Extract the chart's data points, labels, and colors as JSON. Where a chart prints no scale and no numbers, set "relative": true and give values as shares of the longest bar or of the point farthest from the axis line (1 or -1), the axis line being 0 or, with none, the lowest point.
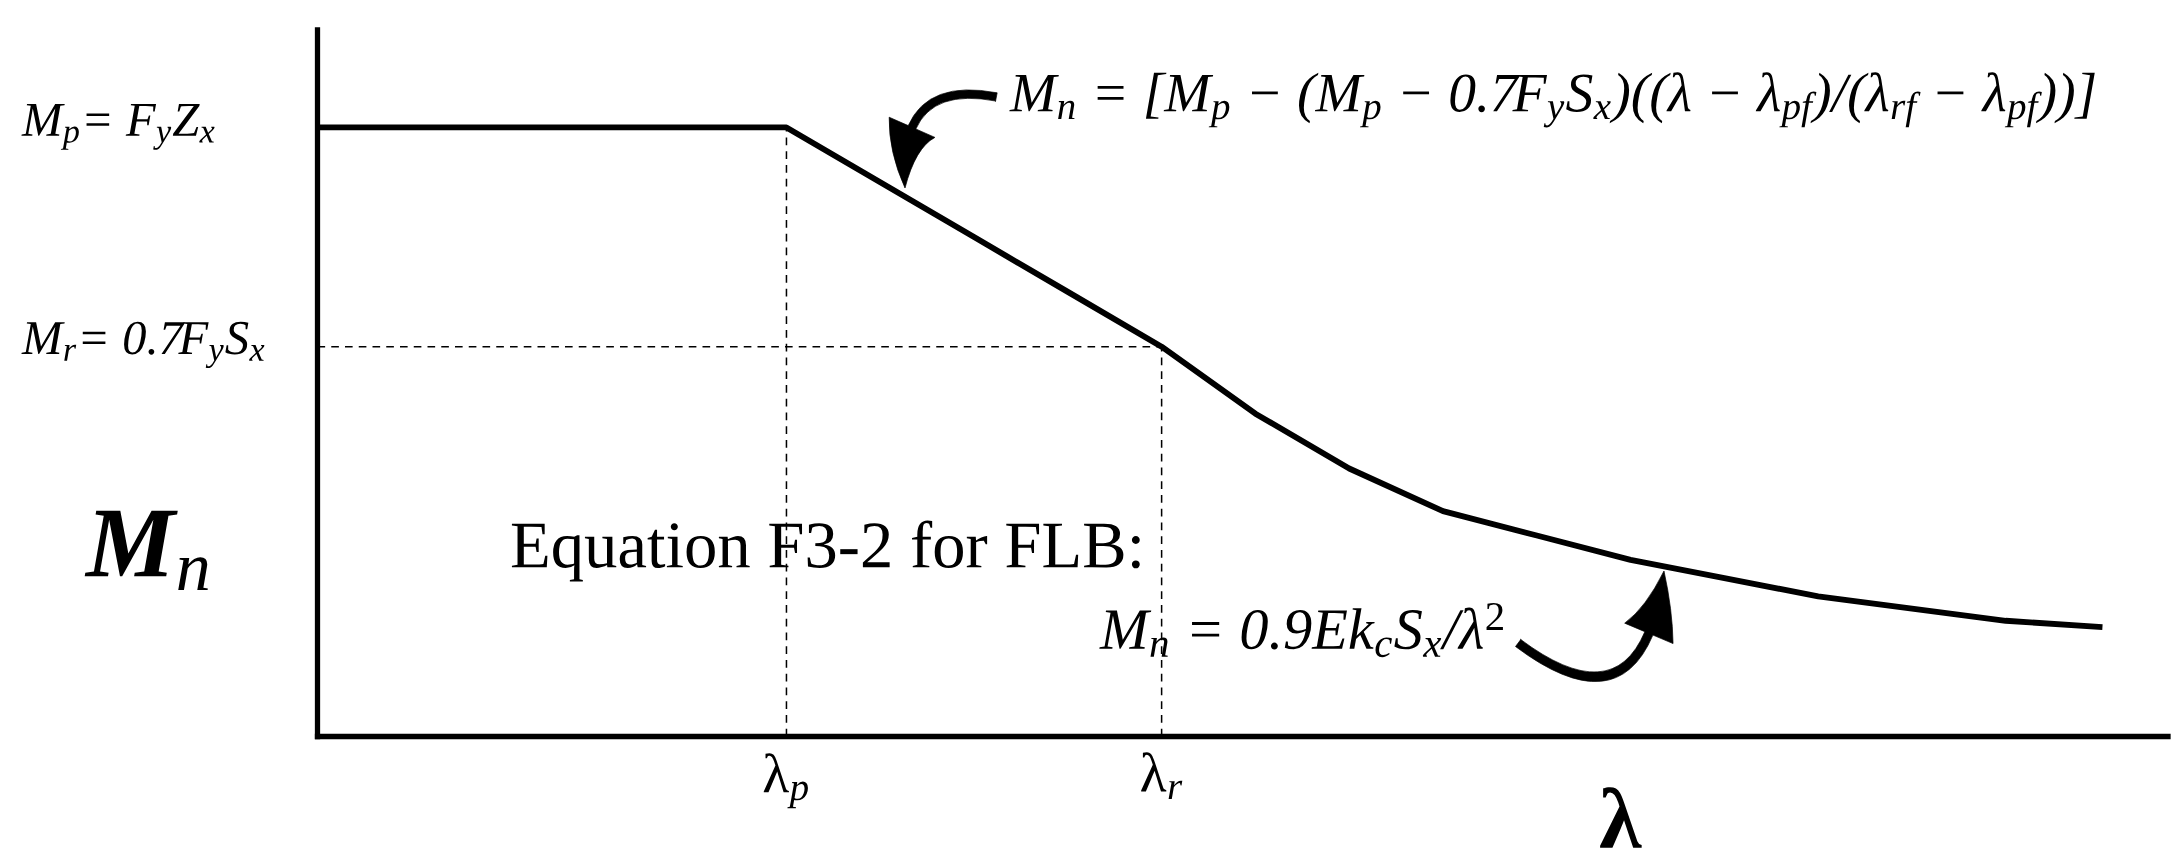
{
  "chart_data": {
    "type": "line",
    "relative": true,
    "line_style": "solid",
    "xlabel": "λ",
    "ylabel": "M$_{n}$",
    "categories": [
      null,
      null,
      null,
      null,
      null,
      "λ$_{p}$",
      null,
      null,
      null,
      "λ$_{r}$",
      null,
      null,
      null,
      null,
      null,
      null,
      null,
      null,
      null,
      null
    ],
    "series": [
      {
        "color": "#000000",
        "values": [
          1,
          1,
          1,
          1,
          1,
          1,
          0.91,
          0.82,
          0.73,
          0.64,
          0.53,
          0.44,
          0.37,
          0.33,
          0.29,
          0.26,
          0.23,
          0.21,
          0.19,
          0.18
        ]
      }
    ],
    "ref_lines": [
      {
        "axis": "x",
        "value": "λ$_{p}$",
        "color": "#000000",
        "line_style": "dashed"
      },
      {
        "axis": "x",
        "value": "λ$_{r}$",
        "color": "#000000",
        "line_style": "dashed"
      },
      {
        "axis": "y",
        "value": 0.64,
        "color": "#000000",
        "line_style": "dashed"
      }
    ],
    "annotations": [
      "M$_{p}$= F$_{y}$Z$_{x}$",
      "M$_{r}$= 0.7F$_{y}$S$_{x}$",
      "M$_{n}$ = [M$_{p}$ − (M$_{p}$ − 0.7F$_{y}$S$_{x}$)((λ − λ$_{pf}$)/(λ$_{rf}$ − λ$_{pf}$))]",
      "Equation F3-2 for FLB:",
      "M$_{n}$ = 0.9Ek$_{c}$S$_{x}$/λ$^{2}$"
    ]
  }
}
